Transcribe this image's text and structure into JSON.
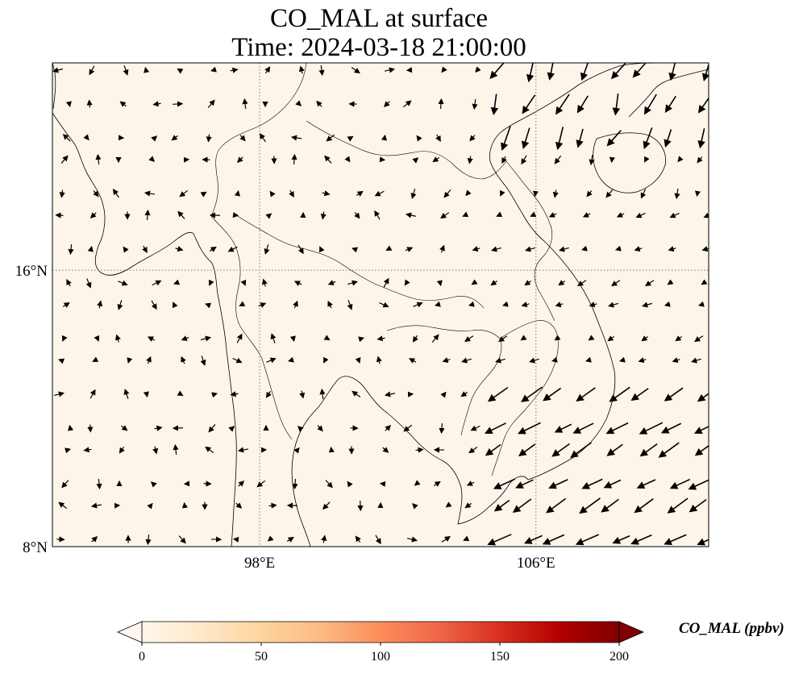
{
  "title": {
    "line1": "CO_MAL at surface",
    "line2": "Time: 2024-03-18 21:00:00"
  },
  "map": {
    "lon_range": [
      92.0,
      111.0
    ],
    "lat_range": [
      8.0,
      22.0
    ],
    "background_color": "#fdf5ea",
    "coastline_color": "#000000",
    "gridline_style": "dotted",
    "lon_ticks": [
      {
        "value": 98,
        "label": "98°E"
      },
      {
        "value": 106,
        "label": "106°E"
      }
    ],
    "lat_ticks": [
      {
        "value": 16,
        "label": "16°N"
      },
      {
        "value": 8,
        "label": "8°N"
      }
    ]
  },
  "colorbar": {
    "label": "CO_MAL (ppbv)",
    "min": 0,
    "max": 200,
    "colormap": "OrRd",
    "colors": [
      "#fff7ec",
      "#fee8c8",
      "#fdd49e",
      "#fdbb84",
      "#fc8d59",
      "#ef6548",
      "#d7301f",
      "#b30000",
      "#7f0000"
    ],
    "extend": "both",
    "ticks": [
      "0",
      "50",
      "100",
      "150",
      "200"
    ]
  }
}
